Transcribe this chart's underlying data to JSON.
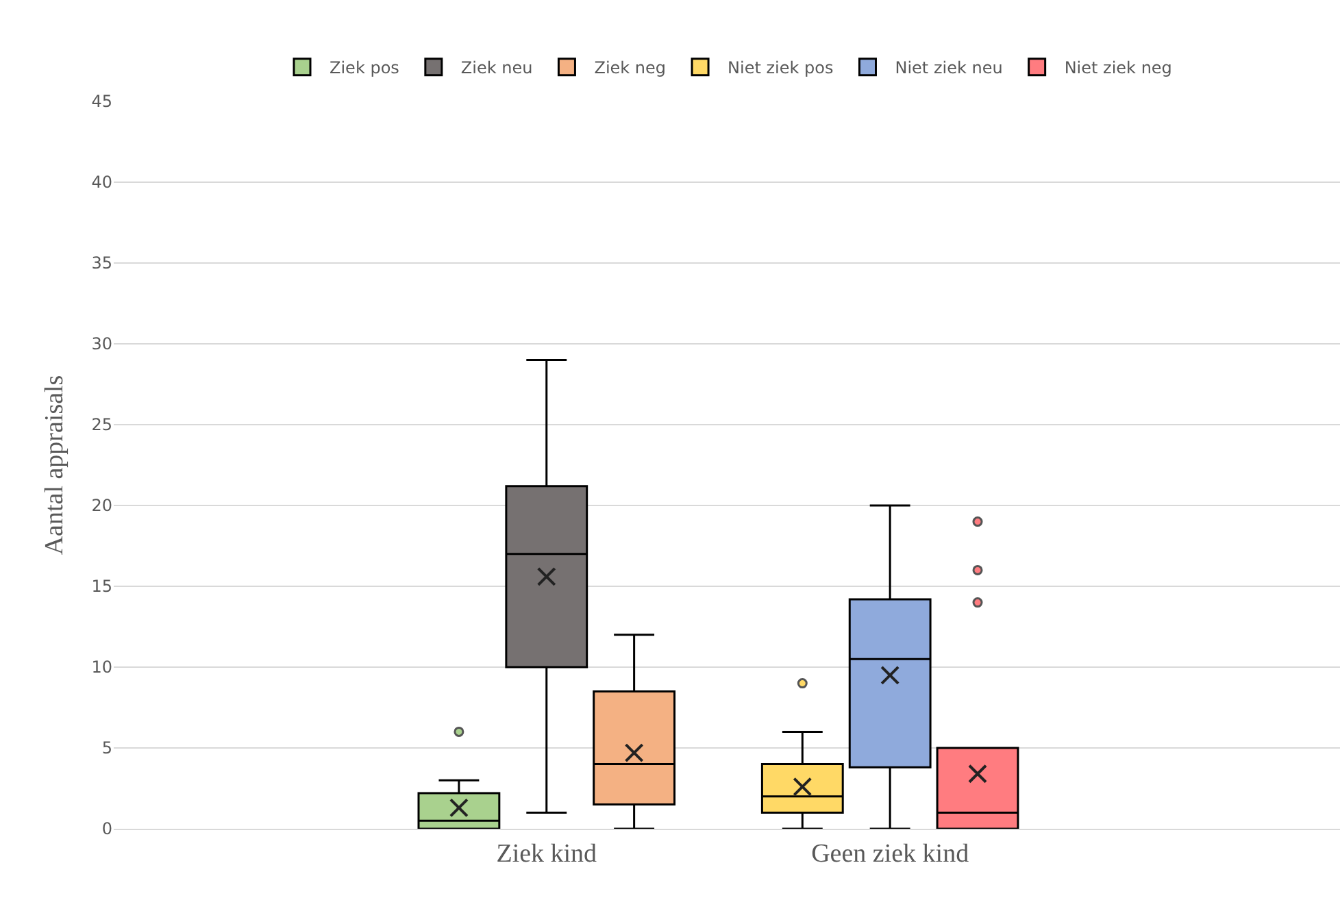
{
  "chart_data": {
    "type": "box",
    "ylabel": "Aantal appraisals",
    "categories": [
      "Ziek kind",
      "Geen ziek kind"
    ],
    "series": [
      {
        "name": "Ziek pos",
        "color": "#a9d18e",
        "boxes": [
          {
            "low": 0,
            "q1": 0,
            "median": 0.5,
            "q3": 2.2,
            "high": 3,
            "mean": 1.3,
            "outliers": [
              6
            ]
          },
          null
        ]
      },
      {
        "name": "Ziek neu",
        "color": "#767171",
        "boxes": [
          {
            "low": 1,
            "q1": 10,
            "median": 17,
            "q3": 21.2,
            "high": 29,
            "mean": 15.6
          },
          null
        ]
      },
      {
        "name": "Ziek neg",
        "color": "#f4b183",
        "boxes": [
          {
            "low": 0,
            "q1": 1.5,
            "median": 4,
            "q3": 8.5,
            "high": 12,
            "mean": 4.7
          },
          null
        ]
      },
      {
        "name": "Niet ziek pos",
        "color": "#ffd966",
        "boxes": [
          null,
          {
            "low": 0,
            "q1": 1,
            "median": 2,
            "q3": 4,
            "high": 6,
            "mean": 2.6,
            "outliers": [
              9
            ]
          }
        ]
      },
      {
        "name": "Niet ziek neu",
        "color": "#8faadc",
        "boxes": [
          null,
          {
            "low": 0,
            "q1": 3.8,
            "median": 10.5,
            "q3": 14.2,
            "high": 20,
            "mean": 9.5
          }
        ]
      },
      {
        "name": "Niet ziek neg",
        "color": "#ff7c80",
        "boxes": [
          null,
          {
            "low": 0,
            "q1": 0,
            "median": 1,
            "q3": 5,
            "high": 5,
            "mean": 3.4,
            "outliers": [
              14,
              16,
              19
            ]
          }
        ]
      }
    ],
    "ylim": [
      0,
      45
    ],
    "yticks": [
      0,
      5,
      10,
      15,
      20,
      25,
      30,
      35,
      40,
      45
    ],
    "grid": "y",
    "legend": "top",
    "marker": "circle"
  }
}
